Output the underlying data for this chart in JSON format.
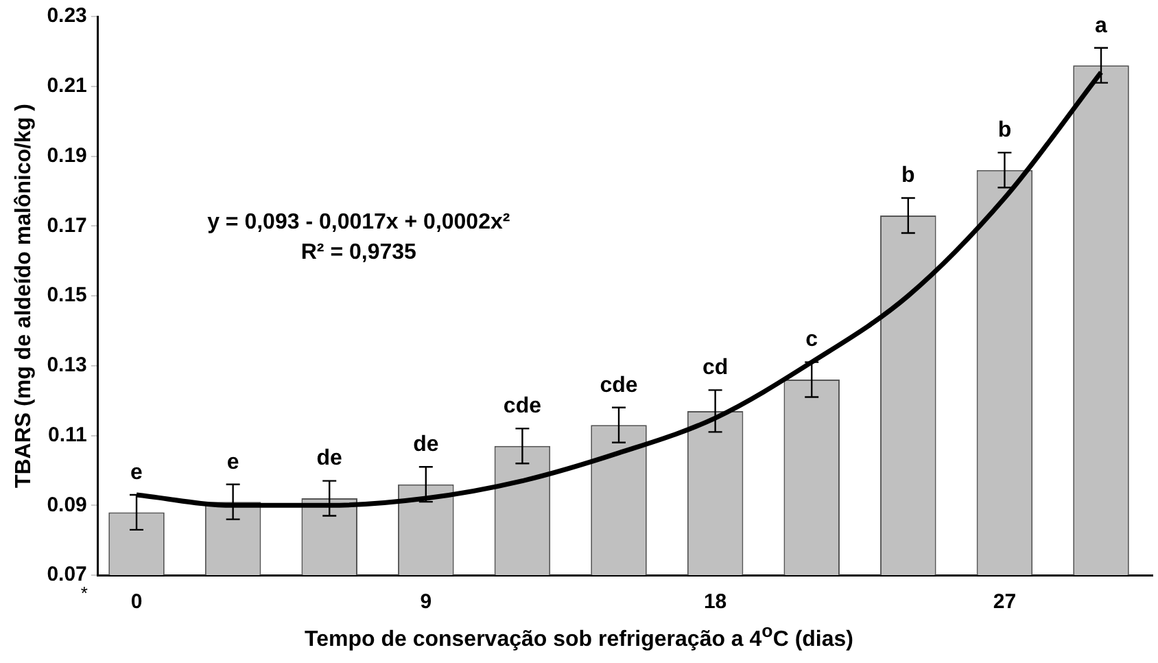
{
  "chart_data": {
    "type": "bar",
    "xlabel": "Tempo de conservação sob refrigeração a 4$^{o}$C (dias)",
    "ylabel": "TBARS (mg de aldeído malônico/kg )",
    "x": [
      0,
      3,
      6,
      9,
      12,
      15,
      18,
      21,
      24,
      27,
      30
    ],
    "xlim": [
      -1.2,
      31.6
    ],
    "xticks": [
      0,
      9,
      18,
      27
    ],
    "ylim": [
      0.07,
      0.23
    ],
    "yticks": [
      0.07,
      0.09,
      0.11,
      0.13,
      0.15,
      0.17,
      0.19,
      0.21,
      0.23
    ],
    "series": [
      {
        "color": "#c0c0c0",
        "values": [
          0.088,
          0.091,
          0.092,
          0.096,
          0.107,
          0.113,
          0.117,
          0.126,
          0.173,
          0.186,
          0.216
        ],
        "errors": [
          0.005,
          0.005,
          0.005,
          0.005,
          0.005,
          0.005,
          0.006,
          0.005,
          0.005,
          0.005,
          0.005
        ],
        "value_labels": [
          "e",
          "e",
          "de",
          "de",
          "cde",
          "cde",
          "cd",
          "c",
          "b",
          "b",
          "a"
        ]
      },
      {
        "type": "line",
        "color": "#000000",
        "x": [
          0,
          3,
          6,
          9,
          12,
          15,
          18,
          21,
          24,
          27,
          30
        ],
        "values": [
          0.093,
          0.09,
          0.09,
          0.092,
          0.097,
          0.105,
          0.115,
          0.131,
          0.15,
          0.178,
          0.214
        ]
      }
    ],
    "annotations": [
      "y = 0,093 - 0,0017x + 0,0002x²",
      "R² = 0,9735",
      "*"
    ],
    "grid": false,
    "legend": false,
    "marker": "none",
    "line_style": "solid"
  }
}
